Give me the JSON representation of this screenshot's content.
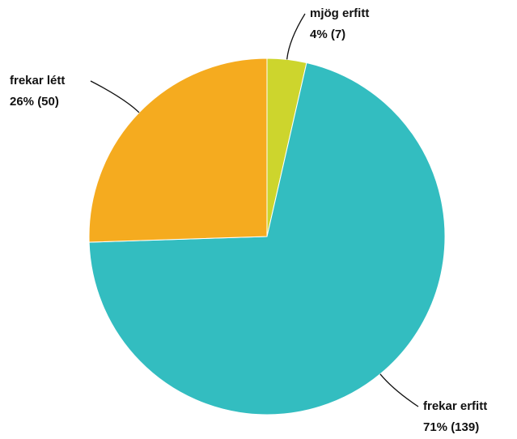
{
  "chart_data": {
    "type": "pie",
    "categories": [
      "mjög erfitt",
      "frekar erfitt",
      "frekar létt"
    ],
    "values": [
      7,
      139,
      50
    ],
    "value_labels": [
      "4% (7)",
      "71% (139)",
      "26% (50)"
    ],
    "colors": [
      "#cdd52d",
      "#33bdc0",
      "#f5ab1f"
    ]
  }
}
